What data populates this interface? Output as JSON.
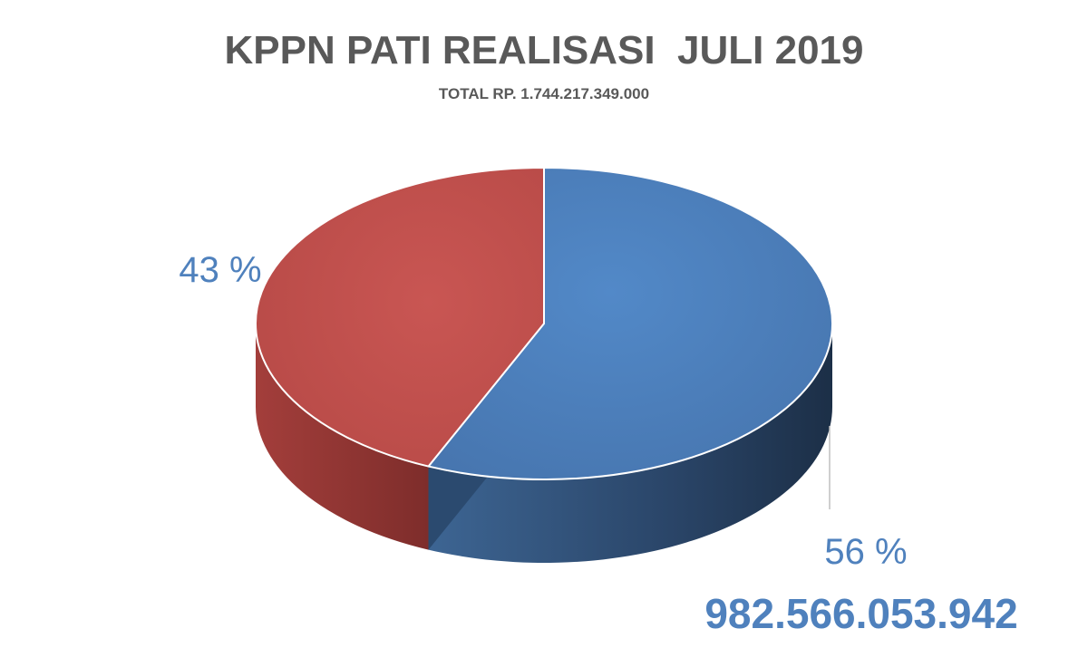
{
  "chart_data": {
    "type": "pie",
    "title": "KPPN PATI REALISASI  JULI 2019",
    "subtitle": "TOTAL RP. 1.744.217.349.000",
    "slices": [
      {
        "value": 56,
        "label": "56 %",
        "amount_label": "982.566.053.942",
        "color": "#4f81bd",
        "side_color": "#2b4a6f"
      },
      {
        "value": 43,
        "label": "43 %",
        "color": "#c0504d",
        "side_color": "#8c3331"
      }
    ],
    "label_color": "#4f81bd",
    "style": "3d"
  }
}
